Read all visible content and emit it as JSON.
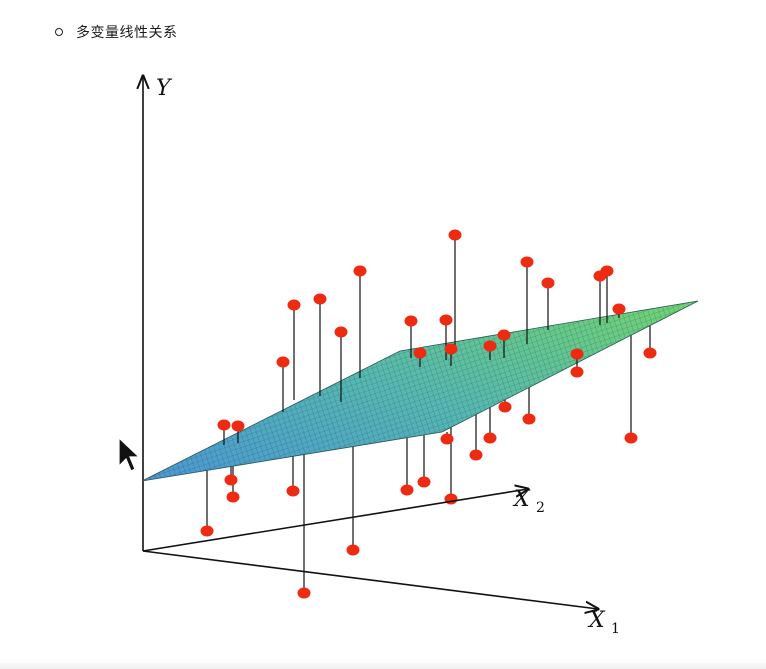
{
  "section": {
    "bullet_text": "多变量线性关系"
  },
  "figure": {
    "y_axis_label": "Y",
    "x1_axis_label": "X",
    "x1_axis_sub": "1",
    "x2_axis_label": "X",
    "x2_axis_sub": "2",
    "point_color": "#ee2b10",
    "line_color": "#111111",
    "plane_colors": [
      "#4fa3d8",
      "#5fc3a6",
      "#6fd27a"
    ],
    "cursor_icon": "arrow-cursor-icon"
  }
}
